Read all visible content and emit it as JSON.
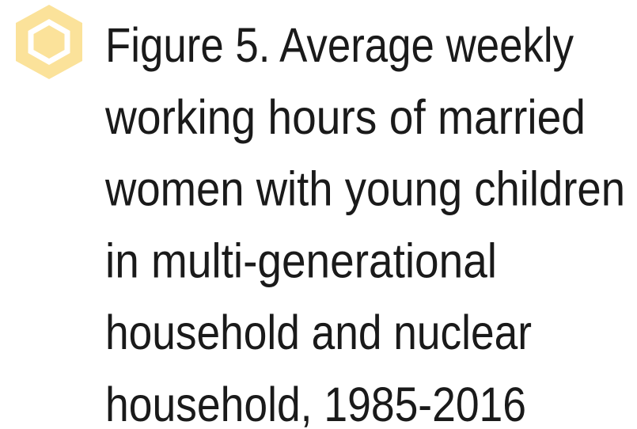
{
  "header": {
    "title_lines": [
      "Figure 5. Average weekly",
      "working hours of married",
      "women with young children",
      "in multi-generational",
      "household and nuclear",
      "household, 1985-2016"
    ]
  }
}
